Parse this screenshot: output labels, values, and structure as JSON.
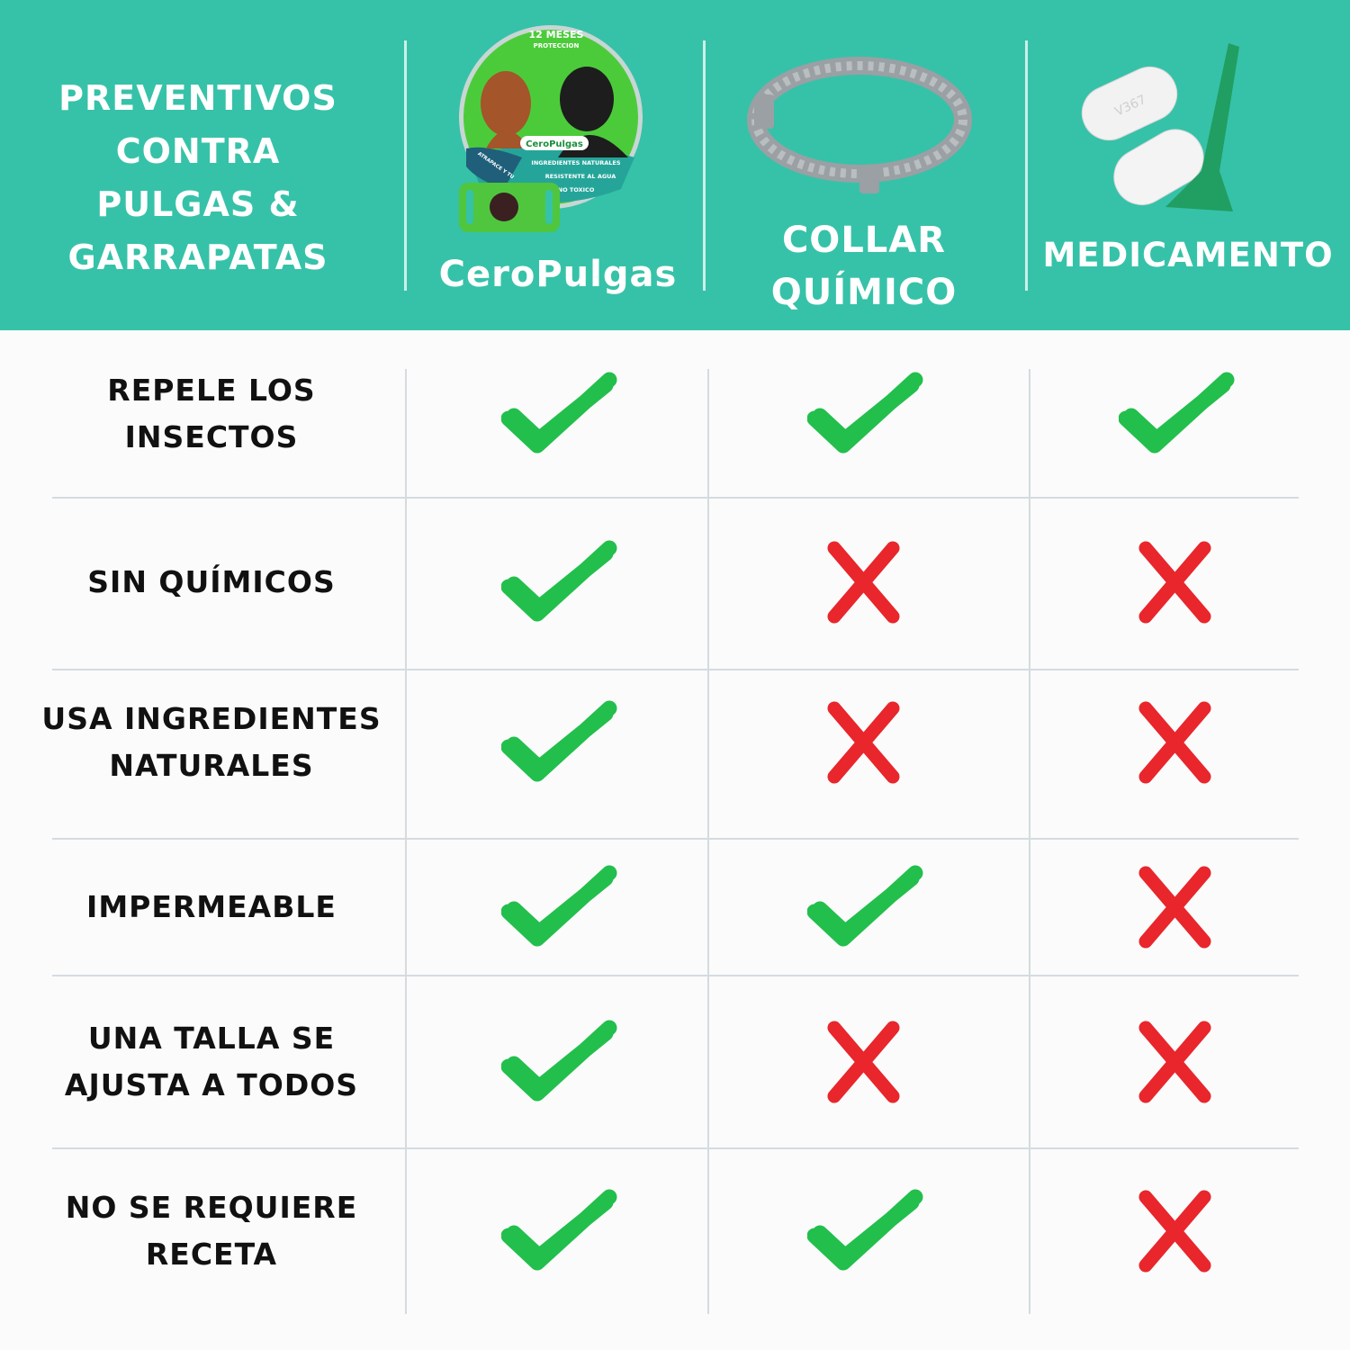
{
  "header": {
    "title": "PREVENTIVOS\nCONTRA\nPULGAS &\nGARRAPATAS",
    "background_color": "#36c2a8",
    "columns": [
      {
        "name": "CeroPulgas",
        "image": "ceropulgas-package-with-dogs",
        "package_text": {
          "top": "12 MESES",
          "top2": "PROTECCION",
          "brand": "CeroPulgas",
          "line1": "INGREDIENTES NATURALES",
          "line2": "RESISTENTE AL AGUA",
          "line3": "NO TOXICO",
          "side": "ATRAPACE Y TU"
        }
      },
      {
        "name": "COLLAR\nQUÍMICO",
        "image": "gray-chemical-collar"
      },
      {
        "name": "MEDICAMENTO",
        "image": "pills-and-pipette",
        "pill_text": "V367"
      }
    ]
  },
  "colors": {
    "check": "#22bf4c",
    "cross": "#e8262c"
  },
  "rows": [
    {
      "label": "REPELE LOS\nINSECTOS",
      "values": [
        "check",
        "check",
        "check"
      ]
    },
    {
      "label": "SIN QUÍMICOS",
      "values": [
        "check",
        "cross",
        "cross"
      ]
    },
    {
      "label": "USA INGREDIENTES\nNATURALES",
      "values": [
        "check",
        "cross",
        "cross"
      ]
    },
    {
      "label": "IMPERMEABLE",
      "values": [
        "check",
        "check",
        "cross"
      ]
    },
    {
      "label": "UNA TALLA SE\nAJUSTA A TODOS",
      "values": [
        "check",
        "cross",
        "cross"
      ]
    },
    {
      "label": "NO SE REQUIERE\nRECETA",
      "values": [
        "check",
        "check",
        "cross"
      ]
    }
  ]
}
